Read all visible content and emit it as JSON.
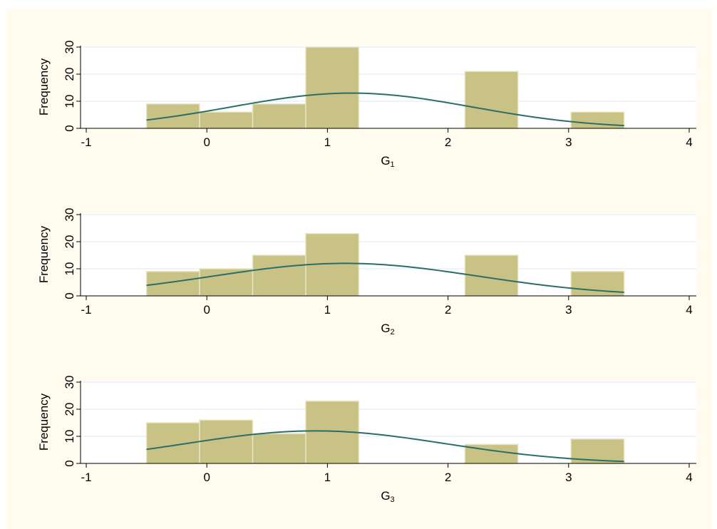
{
  "colors": {
    "background": "#fffbee",
    "plot_bg": "#ffffff",
    "bar_fill": "#c9c285",
    "bar_edge": "#e8e4c4",
    "curve": "#2a6e6a",
    "grid": "#e6eef2",
    "axis": "#000000"
  },
  "chart_data": [
    {
      "type": "bar",
      "ylabel": "Frequency",
      "xlabel_main": "G",
      "xlabel_sub": "1",
      "xlim": [
        -1,
        4
      ],
      "ylim": [
        0,
        30
      ],
      "xticks": [
        "-1",
        "0",
        "1",
        "2",
        "3",
        "4"
      ],
      "yticks": [
        "0",
        "10",
        "20",
        "30"
      ],
      "grid": true,
      "bin_edges": [
        -0.5,
        -0.06,
        0.38,
        0.82,
        1.26,
        1.7,
        2.14,
        2.58,
        3.02,
        3.46
      ],
      "values": [
        9,
        6,
        9,
        30,
        0,
        0,
        21,
        0,
        6
      ],
      "normal_curve": {
        "mean": 1.2,
        "sd": 1.0,
        "peak": 13
      }
    },
    {
      "type": "bar",
      "ylabel": "Frequency",
      "xlabel_main": "G",
      "xlabel_sub": "2",
      "xlim": [
        -1,
        4
      ],
      "ylim": [
        0,
        30
      ],
      "xticks": [
        "-1",
        "0",
        "1",
        "2",
        "3",
        "4"
      ],
      "yticks": [
        "0",
        "10",
        "20",
        "30"
      ],
      "grid": true,
      "bin_edges": [
        -0.5,
        -0.06,
        0.38,
        0.82,
        1.26,
        1.7,
        2.14,
        2.58,
        3.02,
        3.46
      ],
      "values": [
        9,
        10,
        15,
        23,
        0,
        0,
        15,
        0,
        9
      ],
      "normal_curve": {
        "mean": 1.15,
        "sd": 1.1,
        "peak": 12
      }
    },
    {
      "type": "bar",
      "ylabel": "Frequency",
      "xlabel_main": "G",
      "xlabel_sub": "3",
      "xlim": [
        -1,
        4
      ],
      "ylim": [
        0,
        30
      ],
      "xticks": [
        "-1",
        "0",
        "1",
        "2",
        "3",
        "4"
      ],
      "yticks": [
        "0",
        "10",
        "20",
        "30"
      ],
      "grid": true,
      "bin_edges": [
        -0.5,
        -0.06,
        0.38,
        0.82,
        1.26,
        1.7,
        2.14,
        2.58,
        3.02,
        3.46
      ],
      "values": [
        15,
        16,
        11,
        23,
        0,
        0,
        7,
        0,
        9
      ],
      "normal_curve": {
        "mean": 0.9,
        "sd": 1.08,
        "peak": 12
      }
    }
  ]
}
